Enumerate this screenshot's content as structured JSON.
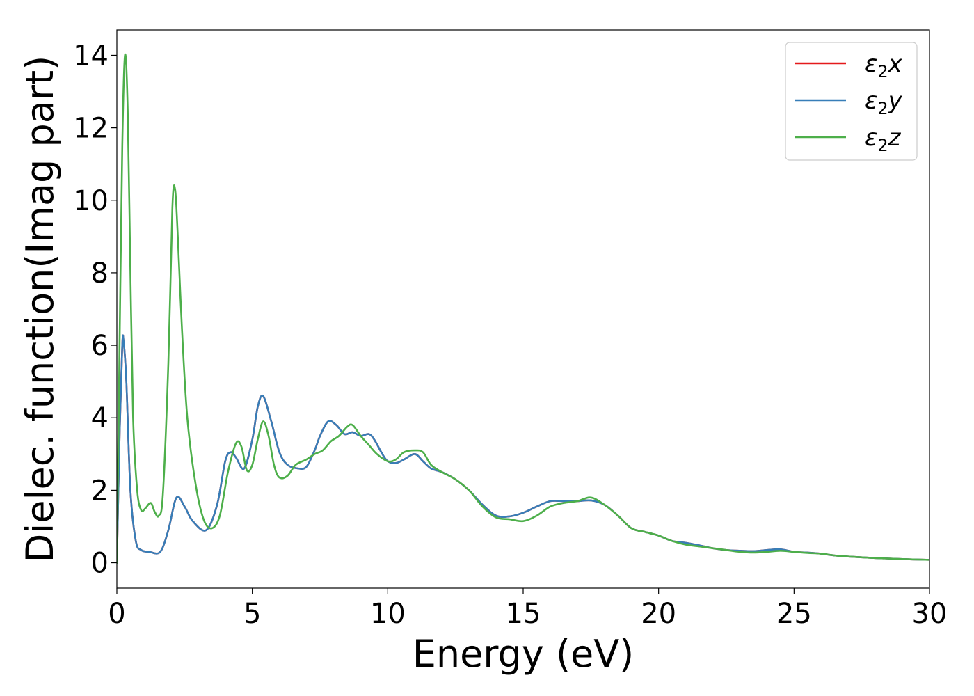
{
  "chart_data": {
    "type": "line",
    "title": "",
    "xlabel": "Energy (eV)",
    "ylabel": "Dielec. function(Imag part)",
    "xlim": [
      0,
      30
    ],
    "ylim": [
      -0.7,
      14.7
    ],
    "xticks": [
      0,
      5,
      10,
      15,
      20,
      25,
      30
    ],
    "yticks": [
      0,
      2,
      4,
      6,
      8,
      10,
      12,
      14
    ],
    "xtick_labels": [
      "0",
      "5",
      "10",
      "15",
      "20",
      "25",
      "30"
    ],
    "ytick_labels": [
      "0",
      "2",
      "4",
      "6",
      "8",
      "10",
      "12",
      "14"
    ],
    "grid": false,
    "legend_position": "top-right",
    "series": [
      {
        "name": "ε2x",
        "name_base": "ε",
        "name_sub": "2",
        "name_tail": "x",
        "color": "#e41a1c",
        "x": [
          0,
          0.1,
          0.2,
          0.25,
          0.35,
          0.5,
          0.7,
          0.9,
          1.2,
          1.6,
          1.9,
          2.2,
          2.5,
          2.8,
          3.3,
          3.7,
          4.0,
          4.2,
          4.4,
          4.7,
          5.0,
          5.2,
          5.4,
          5.7,
          6.0,
          6.3,
          6.7,
          7.0,
          7.3,
          7.5,
          7.8,
          8.1,
          8.4,
          8.7,
          9.0,
          9.3,
          9.5,
          9.8,
          10.0,
          10.3,
          10.6,
          11.0,
          11.3,
          11.6,
          12.0,
          12.5,
          13.0,
          13.5,
          14.0,
          14.5,
          15.0,
          15.5,
          16.0,
          16.5,
          17.0,
          17.5,
          18.0,
          18.5,
          19.0,
          19.5,
          20.0,
          20.5,
          21.0,
          21.5,
          22.0,
          22.5,
          23.0,
          23.5,
          24.0,
          24.5,
          25.0,
          25.5,
          26.0,
          26.5,
          27.0,
          28.0,
          29.0,
          30.0
        ],
        "y": [
          0,
          3.5,
          6.0,
          6.1,
          5.0,
          2.0,
          0.6,
          0.35,
          0.3,
          0.3,
          0.9,
          1.8,
          1.55,
          1.15,
          0.9,
          1.6,
          2.8,
          3.05,
          2.9,
          2.6,
          3.4,
          4.3,
          4.6,
          3.9,
          3.05,
          2.7,
          2.6,
          2.65,
          3.1,
          3.5,
          3.9,
          3.8,
          3.55,
          3.6,
          3.5,
          3.55,
          3.4,
          3.0,
          2.8,
          2.75,
          2.85,
          3.0,
          2.8,
          2.6,
          2.5,
          2.3,
          2.0,
          1.6,
          1.3,
          1.28,
          1.38,
          1.55,
          1.7,
          1.7,
          1.7,
          1.72,
          1.6,
          1.3,
          0.95,
          0.85,
          0.75,
          0.6,
          0.55,
          0.48,
          0.4,
          0.35,
          0.33,
          0.32,
          0.35,
          0.37,
          0.3,
          0.28,
          0.25,
          0.2,
          0.17,
          0.13,
          0.1,
          0.08
        ]
      },
      {
        "name": "ε2y",
        "name_base": "ε",
        "name_sub": "2",
        "name_tail": "y",
        "color": "#377eb8",
        "x": [
          0,
          0.1,
          0.2,
          0.25,
          0.35,
          0.5,
          0.7,
          0.9,
          1.2,
          1.6,
          1.9,
          2.2,
          2.5,
          2.8,
          3.3,
          3.7,
          4.0,
          4.2,
          4.4,
          4.7,
          5.0,
          5.2,
          5.4,
          5.7,
          6.0,
          6.3,
          6.7,
          7.0,
          7.3,
          7.5,
          7.8,
          8.1,
          8.4,
          8.7,
          9.0,
          9.3,
          9.5,
          9.8,
          10.0,
          10.3,
          10.6,
          11.0,
          11.3,
          11.6,
          12.0,
          12.5,
          13.0,
          13.5,
          14.0,
          14.5,
          15.0,
          15.5,
          16.0,
          16.5,
          17.0,
          17.5,
          18.0,
          18.5,
          19.0,
          19.5,
          20.0,
          20.5,
          21.0,
          21.5,
          22.0,
          22.5,
          23.0,
          23.5,
          24.0,
          24.5,
          25.0,
          25.5,
          26.0,
          26.5,
          27.0,
          28.0,
          29.0,
          30.0
        ],
        "y": [
          0,
          3.5,
          6.0,
          6.1,
          5.0,
          2.0,
          0.6,
          0.35,
          0.3,
          0.3,
          0.9,
          1.8,
          1.55,
          1.15,
          0.9,
          1.6,
          2.8,
          3.05,
          2.9,
          2.6,
          3.4,
          4.3,
          4.6,
          3.9,
          3.05,
          2.7,
          2.6,
          2.65,
          3.1,
          3.5,
          3.9,
          3.8,
          3.55,
          3.6,
          3.5,
          3.55,
          3.4,
          3.0,
          2.8,
          2.75,
          2.85,
          3.0,
          2.8,
          2.6,
          2.5,
          2.3,
          2.0,
          1.6,
          1.3,
          1.28,
          1.38,
          1.55,
          1.7,
          1.7,
          1.7,
          1.72,
          1.6,
          1.3,
          0.95,
          0.85,
          0.75,
          0.6,
          0.55,
          0.48,
          0.4,
          0.35,
          0.33,
          0.32,
          0.35,
          0.37,
          0.3,
          0.28,
          0.25,
          0.2,
          0.17,
          0.13,
          0.1,
          0.08
        ]
      },
      {
        "name": "ε2z",
        "name_base": "ε",
        "name_sub": "2",
        "name_tail": "z",
        "color": "#4daf4a",
        "x": [
          0,
          0.1,
          0.2,
          0.3,
          0.4,
          0.5,
          0.6,
          0.75,
          0.9,
          1.05,
          1.25,
          1.4,
          1.55,
          1.7,
          1.9,
          2.05,
          2.15,
          2.25,
          2.4,
          2.6,
          2.9,
          3.2,
          3.5,
          3.8,
          4.1,
          4.4,
          4.6,
          4.8,
          5.0,
          5.2,
          5.4,
          5.6,
          5.8,
          6.0,
          6.3,
          6.6,
          7.0,
          7.3,
          7.6,
          7.9,
          8.2,
          8.5,
          8.7,
          9.0,
          9.3,
          9.6,
          10.0,
          10.3,
          10.6,
          11.0,
          11.3,
          11.6,
          12.0,
          12.5,
          13.0,
          13.5,
          14.0,
          14.5,
          15.0,
          15.5,
          16.0,
          16.5,
          17.0,
          17.5,
          18.0,
          18.5,
          19.0,
          19.5,
          20.0,
          20.5,
          21.0,
          21.5,
          22.0,
          22.5,
          23.0,
          23.5,
          24.0,
          24.5,
          25.0,
          25.5,
          26.0,
          26.5,
          27.0,
          28.0,
          29.0,
          30.0
        ],
        "y": [
          0,
          6.0,
          11.5,
          14.0,
          12.5,
          8.0,
          4.0,
          2.0,
          1.45,
          1.5,
          1.65,
          1.4,
          1.3,
          1.9,
          5.5,
          9.8,
          10.3,
          9.0,
          6.5,
          4.0,
          2.2,
          1.2,
          0.95,
          1.3,
          2.5,
          3.3,
          3.2,
          2.55,
          2.7,
          3.4,
          3.9,
          3.5,
          2.7,
          2.35,
          2.4,
          2.7,
          2.85,
          3.0,
          3.1,
          3.35,
          3.5,
          3.75,
          3.8,
          3.5,
          3.25,
          3.0,
          2.8,
          2.85,
          3.05,
          3.1,
          3.05,
          2.7,
          2.5,
          2.3,
          2.0,
          1.55,
          1.25,
          1.2,
          1.15,
          1.3,
          1.55,
          1.65,
          1.7,
          1.8,
          1.6,
          1.3,
          0.95,
          0.85,
          0.75,
          0.6,
          0.5,
          0.45,
          0.4,
          0.35,
          0.3,
          0.28,
          0.3,
          0.33,
          0.3,
          0.27,
          0.25,
          0.2,
          0.17,
          0.13,
          0.1,
          0.08
        ]
      }
    ]
  }
}
